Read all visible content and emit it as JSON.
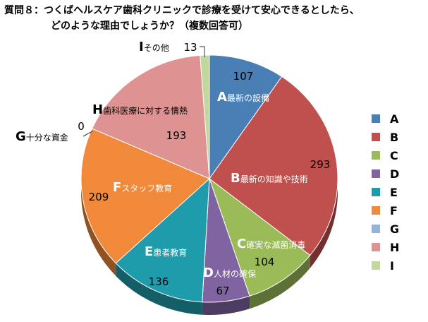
{
  "title": {
    "line1": "質問８：つくばヘルスケア歯科クリニックで診療を受けて安心できるとしたら、",
    "line2": "どのような理由でしょうか？（複数回答可）"
  },
  "chart_data": {
    "type": "pie",
    "title": "質問８：つくばヘルスケア歯科クリニックで診療を受けて安心できるとしたら、どのような理由でしょうか？（複数回答可）",
    "legend_position": "right",
    "slices": [
      {
        "code": "A",
        "label": "最新の設備",
        "value": 107,
        "color": "#4a7fb5"
      },
      {
        "code": "B",
        "label": "最新の知識や技術",
        "value": 293,
        "color": "#c0504d"
      },
      {
        "code": "C",
        "label": "確実な滅菌消毒",
        "value": 104,
        "color": "#9bbb59"
      },
      {
        "code": "D",
        "label": "人材の確保",
        "value": 67,
        "color": "#8064a2"
      },
      {
        "code": "E",
        "label": "患者教育",
        "value": 136,
        "color": "#1f9cab"
      },
      {
        "code": "F",
        "label": "スタッフ教育",
        "value": 209,
        "color": "#f0893a"
      },
      {
        "code": "G",
        "label": "十分な資金",
        "value": 0,
        "color": "#95b3d7"
      },
      {
        "code": "H",
        "label": "歯科医療に対する情熱",
        "value": 193,
        "color": "#de9392"
      },
      {
        "code": "I",
        "label": "その他",
        "value": 13,
        "color": "#c3d69b"
      }
    ]
  }
}
